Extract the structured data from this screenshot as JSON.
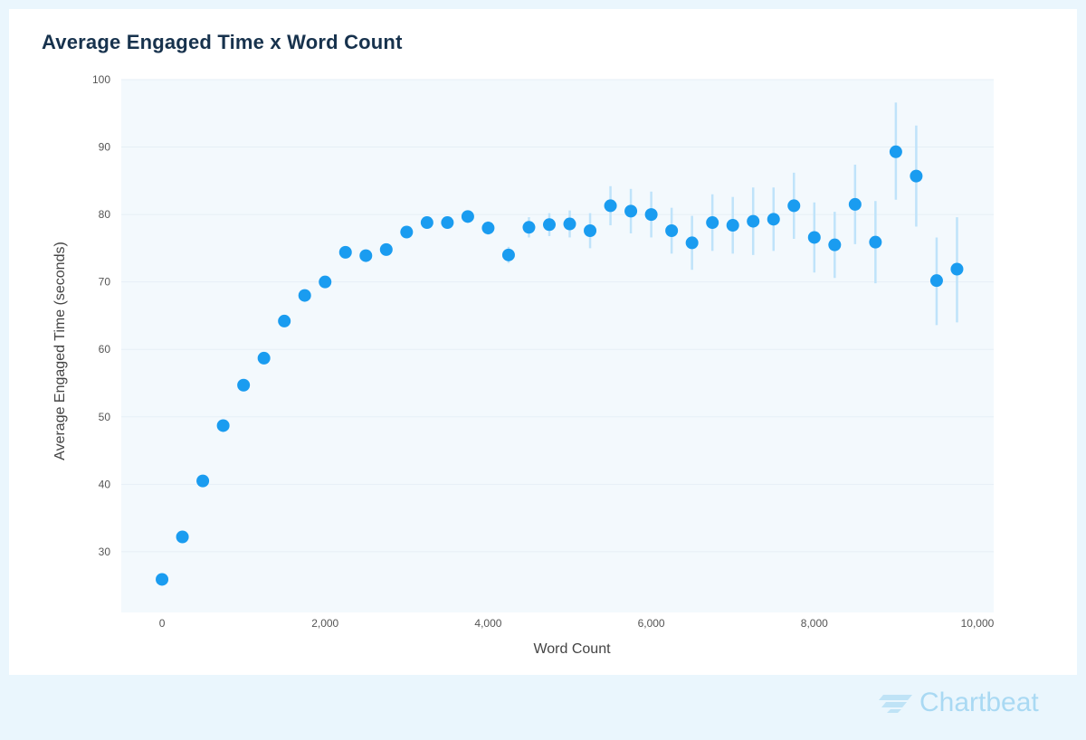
{
  "title": "Average Engaged Time x Word Count",
  "brand": "Chartbeat",
  "colors": {
    "point": "#1a9cf0",
    "errorbar": "#bfe3fa",
    "plot_bg": "#f3f9fd",
    "grid": "#e6eff6",
    "axis_text": "#555555",
    "title": "#17324d"
  },
  "chart_data": {
    "type": "scatter",
    "title": "Average Engaged Time x Word Count",
    "xlabel": "Word Count",
    "ylabel": "Average Engaged Time (seconds)",
    "xlim": [
      -500,
      10200
    ],
    "ylim": [
      21,
      100
    ],
    "xticks": [
      0,
      2000,
      4000,
      6000,
      8000,
      10000
    ],
    "xtick_labels": [
      "0",
      "2,000",
      "4,000",
      "6,000",
      "8,000",
      "10,000"
    ],
    "yticks": [
      30,
      40,
      50,
      60,
      70,
      80,
      90,
      100
    ],
    "ytick_labels": [
      "30",
      "40",
      "50",
      "60",
      "70",
      "80",
      "90",
      "100"
    ],
    "grid": true,
    "points": [
      {
        "x": 0,
        "y": 25.9
      },
      {
        "x": 250,
        "y": 32.2
      },
      {
        "x": 500,
        "y": 40.5
      },
      {
        "x": 750,
        "y": 48.7
      },
      {
        "x": 1000,
        "y": 54.7
      },
      {
        "x": 1250,
        "y": 58.7
      },
      {
        "x": 1500,
        "y": 64.2
      },
      {
        "x": 1750,
        "y": 68.0
      },
      {
        "x": 2000,
        "y": 70.0
      },
      {
        "x": 2250,
        "y": 74.4
      },
      {
        "x": 2500,
        "y": 73.9
      },
      {
        "x": 2750,
        "y": 74.8
      },
      {
        "x": 3000,
        "y": 77.4
      },
      {
        "x": 3250,
        "y": 78.8,
        "lo": 78.0,
        "hi": 79.6
      },
      {
        "x": 3500,
        "y": 78.8,
        "lo": 78.0,
        "hi": 79.6
      },
      {
        "x": 3750,
        "y": 79.7,
        "lo": 78.8,
        "hi": 80.6
      },
      {
        "x": 4000,
        "y": 78.0,
        "lo": 77.0,
        "hi": 79.0
      },
      {
        "x": 4250,
        "y": 74.0,
        "lo": 72.8,
        "hi": 75.2
      },
      {
        "x": 4500,
        "y": 78.1,
        "lo": 76.6,
        "hi": 79.6
      },
      {
        "x": 4750,
        "y": 78.5,
        "lo": 76.8,
        "hi": 80.2
      },
      {
        "x": 5000,
        "y": 78.6,
        "lo": 76.6,
        "hi": 80.6
      },
      {
        "x": 5250,
        "y": 77.6,
        "lo": 75.0,
        "hi": 80.2
      },
      {
        "x": 5500,
        "y": 81.3,
        "lo": 78.4,
        "hi": 84.2
      },
      {
        "x": 5750,
        "y": 80.5,
        "lo": 77.2,
        "hi": 83.8
      },
      {
        "x": 6000,
        "y": 80.0,
        "lo": 76.6,
        "hi": 83.4
      },
      {
        "x": 6250,
        "y": 77.6,
        "lo": 74.2,
        "hi": 81.0
      },
      {
        "x": 6500,
        "y": 75.8,
        "lo": 71.8,
        "hi": 79.8
      },
      {
        "x": 6750,
        "y": 78.8,
        "lo": 74.6,
        "hi": 83.0
      },
      {
        "x": 7000,
        "y": 78.4,
        "lo": 74.2,
        "hi": 82.6
      },
      {
        "x": 7250,
        "y": 79.0,
        "lo": 74.0,
        "hi": 84.0
      },
      {
        "x": 7500,
        "y": 79.3,
        "lo": 74.6,
        "hi": 84.0
      },
      {
        "x": 7750,
        "y": 81.3,
        "lo": 76.4,
        "hi": 86.2
      },
      {
        "x": 8000,
        "y": 76.6,
        "lo": 71.4,
        "hi": 81.8
      },
      {
        "x": 8250,
        "y": 75.5,
        "lo": 70.6,
        "hi": 80.4
      },
      {
        "x": 8500,
        "y": 81.5,
        "lo": 75.6,
        "hi": 87.4
      },
      {
        "x": 8750,
        "y": 75.9,
        "lo": 69.8,
        "hi": 82.0
      },
      {
        "x": 9000,
        "y": 89.3,
        "lo": 82.2,
        "hi": 96.6
      },
      {
        "x": 9250,
        "y": 85.7,
        "lo": 78.2,
        "hi": 93.2
      },
      {
        "x": 9500,
        "y": 70.2,
        "lo": 63.6,
        "hi": 76.6
      },
      {
        "x": 9750,
        "y": 71.9,
        "lo": 64.0,
        "hi": 79.6
      }
    ]
  }
}
